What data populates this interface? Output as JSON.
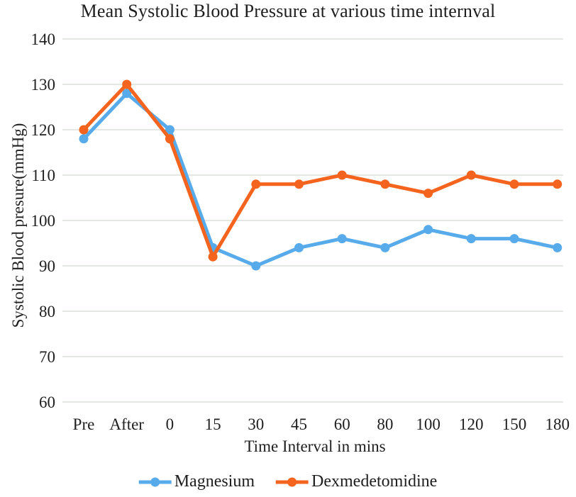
{
  "chart_data": {
    "type": "line",
    "title": "Mean Systolic Blood Pressure at various time internval",
    "xlabel": "Time Interval in mins",
    "ylabel": "Systolic Blood presure(mmHg)",
    "categories": [
      "Pre",
      "After",
      "0",
      "15",
      "30",
      "45",
      "60",
      "80",
      "100",
      "120",
      "150",
      "180"
    ],
    "series": [
      {
        "name": "Magnesium",
        "color": "#58ABEA",
        "values": [
          118,
          128,
          120,
          94,
          90,
          94,
          96,
          94,
          98,
          96,
          96,
          94
        ]
      },
      {
        "name": "Dexmedetomidine",
        "color": "#F4641E",
        "values": [
          120,
          130,
          118,
          92,
          108,
          108,
          110,
          108,
          106,
          110,
          108,
          108
        ]
      }
    ],
    "ylim": [
      60,
      140
    ],
    "yticks": [
      "140",
      "130",
      "120",
      "110",
      "100",
      "90",
      "80",
      "70",
      "60"
    ],
    "grid": true,
    "gridline_color": "#dbdfdc",
    "text_color": "#1e1e1e",
    "legend_position": "bottom"
  }
}
